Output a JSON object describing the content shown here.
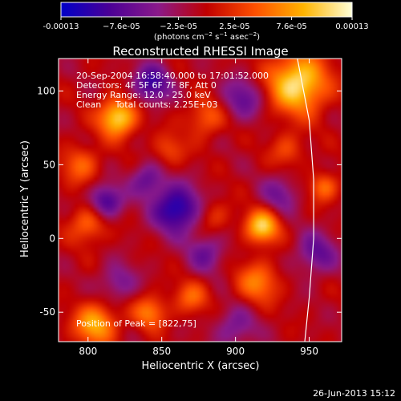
{
  "chart_data": {
    "type": "heatmap",
    "title": "Reconstructed RHESSI Image",
    "xlabel": "Heliocentric X (arcsec)",
    "ylabel": "Heliocentric Y (arcsec)",
    "xlim": [
      780,
      972
    ],
    "ylim": [
      -70,
      122
    ],
    "x_ticks": [
      800,
      850,
      900,
      950
    ],
    "y_ticks": [
      -50,
      0,
      50,
      100
    ],
    "colorbar": {
      "min": -0.00013,
      "max": 0.00013,
      "tick_values": [
        -0.00013,
        -7.6e-05,
        -2.5e-05,
        2.5e-05,
        7.6e-05,
        0.00013
      ],
      "tick_labels": [
        "-0.00013",
        "−7.6e-05",
        "−2.5e-05",
        "2.5e-05",
        "7.6e-05",
        "0.00013"
      ],
      "units_text": "(photons cm",
      "units_sup1": "−2",
      "units_mid": " s",
      "units_sup2": "−1",
      "units_mid2": " asec",
      "units_sup3": "−2",
      "units_end": ")",
      "colors": [
        "#0000c8",
        "#4b0096",
        "#8a1a8a",
        "#c00000",
        "#ff5000",
        "#ffb400",
        "#ffffd8"
      ]
    },
    "annotations": [
      "20-Sep-2004 16:58:40.000 to 17:01:52.000",
      "Detectors: 4F 5F 6F 7F 8F, Att 0",
      "Energy Range: 12.0 - 25.0 keV",
      "Clean     Total counts: 2.25E+03"
    ],
    "peak_label": "Position of Peak = [822,75]",
    "peak": [
      822,
      75
    ],
    "features": [
      {
        "x": 942,
        "y": 105,
        "v": 1.0,
        "s": 14
      },
      {
        "x": 820,
        "y": 82,
        "v": 0.95,
        "s": 9
      },
      {
        "x": 918,
        "y": 8,
        "v": 0.9,
        "s": 8
      },
      {
        "x": 805,
        "y": -58,
        "v": 0.75,
        "s": 10
      },
      {
        "x": 842,
        "y": -50,
        "v": 0.55,
        "s": 8
      },
      {
        "x": 915,
        "y": -30,
        "v": 0.55,
        "s": 10
      },
      {
        "x": 880,
        "y": 82,
        "v": 0.45,
        "s": 9
      },
      {
        "x": 855,
        "y": 60,
        "v": 0.35,
        "s": 8
      },
      {
        "x": 795,
        "y": 50,
        "v": 0.45,
        "s": 9
      },
      {
        "x": 800,
        "y": 10,
        "v": 0.5,
        "s": 9
      },
      {
        "x": 935,
        "y": 60,
        "v": 0.35,
        "s": 8
      },
      {
        "x": 960,
        "y": 35,
        "v": 0.5,
        "s": 7
      },
      {
        "x": 870,
        "y": -40,
        "v": 0.45,
        "s": 8
      },
      {
        "x": 885,
        "y": 15,
        "v": 0.3,
        "s": 8
      },
      {
        "x": 860,
        "y": 20,
        "v": -0.9,
        "s": 11
      },
      {
        "x": 843,
        "y": 105,
        "v": -0.7,
        "s": 9
      },
      {
        "x": 812,
        "y": 25,
        "v": -0.7,
        "s": 8
      },
      {
        "x": 905,
        "y": 95,
        "v": -0.5,
        "s": 10
      },
      {
        "x": 840,
        "y": 40,
        "v": -0.5,
        "s": 8
      },
      {
        "x": 955,
        "y": -10,
        "v": -0.5,
        "s": 10
      },
      {
        "x": 930,
        "y": 30,
        "v": -0.4,
        "s": 9
      },
      {
        "x": 880,
        "y": -10,
        "v": -0.45,
        "s": 9
      },
      {
        "x": 820,
        "y": -30,
        "v": -0.4,
        "s": 9
      },
      {
        "x": 900,
        "y": -60,
        "v": -0.4,
        "s": 10
      }
    ],
    "limb_curve": [
      [
        942,
        122
      ],
      [
        950,
        80
      ],
      [
        953,
        40
      ],
      [
        953,
        0
      ],
      [
        950,
        -40
      ],
      [
        947,
        -70
      ]
    ]
  },
  "footer": {
    "timestamp": "26-Jun-2013 15:12"
  }
}
